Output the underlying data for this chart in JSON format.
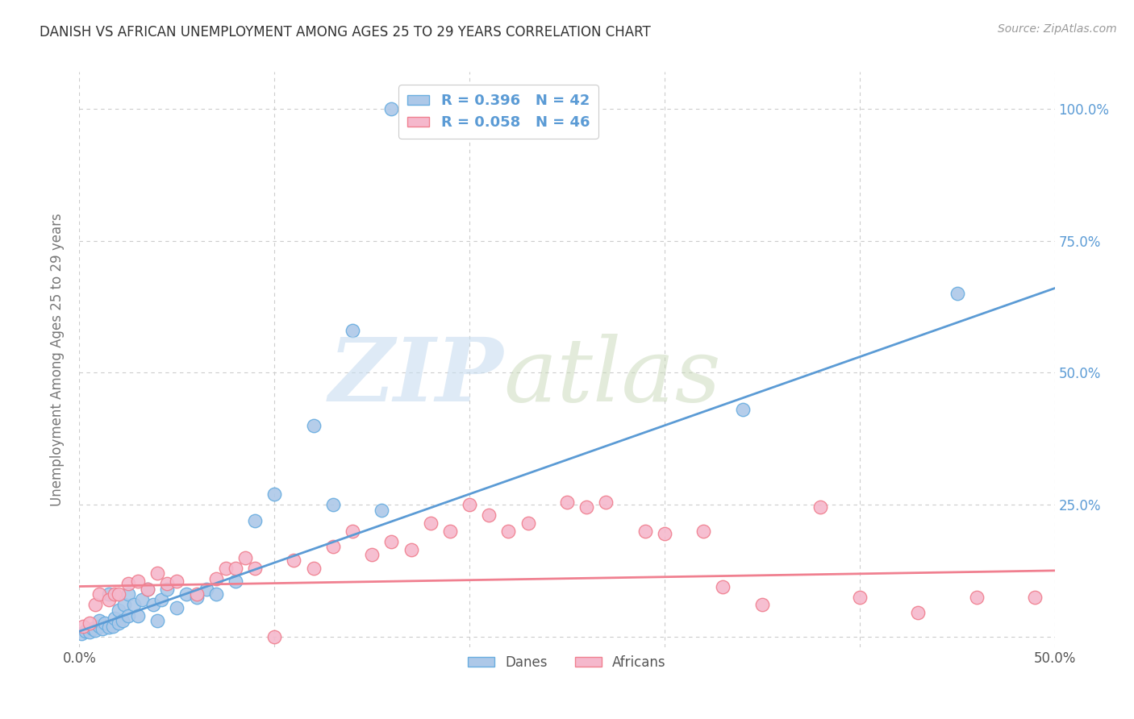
{
  "title": "DANISH VS AFRICAN UNEMPLOYMENT AMONG AGES 25 TO 29 YEARS CORRELATION CHART",
  "source": "Source: ZipAtlas.com",
  "ylabel": "Unemployment Among Ages 25 to 29 years",
  "xlim": [
    0.0,
    0.5
  ],
  "ylim": [
    -0.02,
    1.07
  ],
  "xticks": [
    0.0,
    0.1,
    0.2,
    0.3,
    0.4,
    0.5
  ],
  "yticks": [
    0.0,
    0.25,
    0.5,
    0.75,
    1.0
  ],
  "danes_color": "#adc8e8",
  "africans_color": "#f5b8cc",
  "danes_edge_color": "#6aaee0",
  "africans_edge_color": "#f08090",
  "danes_line_color": "#5b9bd5",
  "africans_line_color": "#f08090",
  "danes_R": 0.396,
  "danes_N": 42,
  "africans_R": 0.058,
  "africans_N": 46,
  "background_color": "#ffffff",
  "grid_color": "#cccccc",
  "danes_x": [
    0.001,
    0.003,
    0.005,
    0.007,
    0.008,
    0.01,
    0.01,
    0.012,
    0.013,
    0.015,
    0.015,
    0.017,
    0.018,
    0.02,
    0.02,
    0.022,
    0.023,
    0.025,
    0.025,
    0.028,
    0.03,
    0.032,
    0.035,
    0.038,
    0.04,
    0.042,
    0.045,
    0.05,
    0.055,
    0.06,
    0.065,
    0.07,
    0.08,
    0.09,
    0.1,
    0.12,
    0.13,
    0.14,
    0.155,
    0.16,
    0.34,
    0.45
  ],
  "danes_y": [
    0.005,
    0.01,
    0.008,
    0.015,
    0.012,
    0.02,
    0.03,
    0.015,
    0.025,
    0.018,
    0.08,
    0.02,
    0.035,
    0.025,
    0.05,
    0.03,
    0.06,
    0.04,
    0.08,
    0.06,
    0.04,
    0.07,
    0.09,
    0.06,
    0.03,
    0.07,
    0.09,
    0.055,
    0.08,
    0.075,
    0.09,
    0.08,
    0.105,
    0.22,
    0.27,
    0.4,
    0.25,
    0.58,
    0.24,
    1.0,
    0.43,
    0.65
  ],
  "africans_x": [
    0.002,
    0.005,
    0.008,
    0.01,
    0.015,
    0.018,
    0.02,
    0.025,
    0.03,
    0.035,
    0.04,
    0.045,
    0.05,
    0.06,
    0.07,
    0.075,
    0.08,
    0.085,
    0.09,
    0.1,
    0.11,
    0.12,
    0.13,
    0.14,
    0.15,
    0.16,
    0.17,
    0.18,
    0.19,
    0.2,
    0.21,
    0.22,
    0.23,
    0.25,
    0.26,
    0.27,
    0.29,
    0.3,
    0.32,
    0.33,
    0.35,
    0.38,
    0.4,
    0.43,
    0.46,
    0.49
  ],
  "africans_y": [
    0.02,
    0.025,
    0.06,
    0.08,
    0.07,
    0.08,
    0.08,
    0.1,
    0.105,
    0.09,
    0.12,
    0.1,
    0.105,
    0.08,
    0.11,
    0.13,
    0.13,
    0.15,
    0.13,
    0.0,
    0.145,
    0.13,
    0.17,
    0.2,
    0.155,
    0.18,
    0.165,
    0.215,
    0.2,
    0.25,
    0.23,
    0.2,
    0.215,
    0.255,
    0.245,
    0.255,
    0.2,
    0.195,
    0.2,
    0.095,
    0.06,
    0.245,
    0.075,
    0.045,
    0.075,
    0.075
  ]
}
